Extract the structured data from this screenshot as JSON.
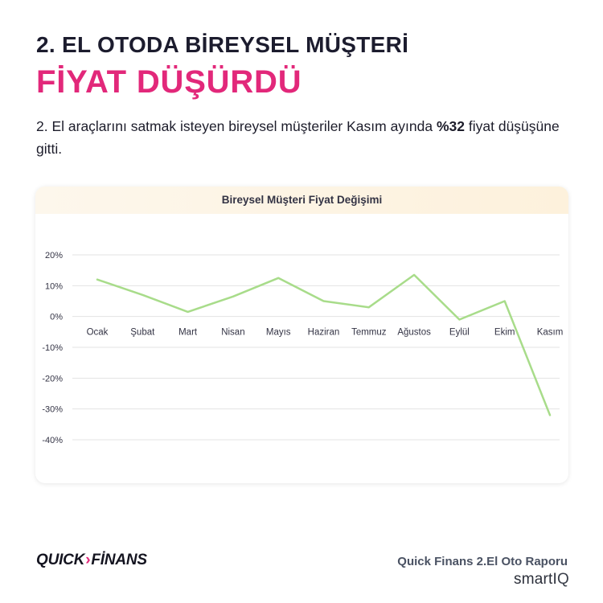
{
  "header": {
    "title_line1": "2. EL OTODA BİREYSEL MÜŞTERİ",
    "title_line2": "FİYAT DÜŞÜRDÜ",
    "subtitle_before": "2. El araçlarını satmak isteyen bireysel müşteriler Kasım ayında ",
    "subtitle_bold": "%32",
    "subtitle_after": " fiyat düşüşüne gitti."
  },
  "colors": {
    "accent": "#e2287a",
    "line": "#a8dc8a",
    "grid": "#e3e3e3"
  },
  "chart_data": {
    "type": "line",
    "title": "Bireysel Müşteri Fiyat Değişimi",
    "categories": [
      "Ocak",
      "Şubat",
      "Mart",
      "Nisan",
      "Mayıs",
      "Haziran",
      "Temmuz",
      "Ağustos",
      "Eylül",
      "Ekim",
      "Kasım"
    ],
    "series": [
      {
        "values": [
          12,
          7,
          1.5,
          6.5,
          12.5,
          5,
          3,
          13.5,
          -1,
          5,
          -32
        ]
      }
    ],
    "ylim": [
      -40,
      20
    ],
    "yticks": [
      20,
      10,
      0,
      -10,
      -20,
      -30,
      -40
    ],
    "ytick_labels": [
      "20%",
      "10%",
      "0%",
      "-10%",
      "-20%",
      "-30%",
      "-40%"
    ],
    "grid": true,
    "legend": "none",
    "xlabel": "",
    "ylabel": ""
  },
  "footer": {
    "logo_left": "QUICK",
    "logo_arrow": "›",
    "logo_right": "FİNANS",
    "report_title": "Quick Finans 2.El Oto Raporu",
    "brand_smart": "smartI",
    "brand_q": "Q"
  }
}
